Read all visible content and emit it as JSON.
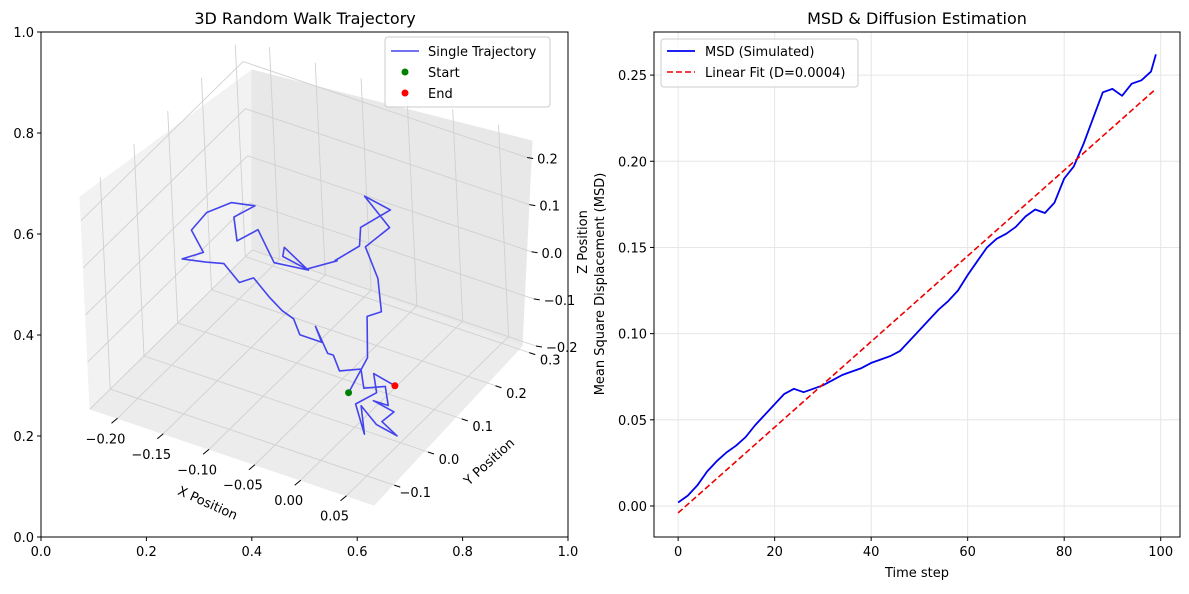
{
  "colors": {
    "trajectory": "#4444ee",
    "start": "#008000",
    "end": "#ff0000",
    "msd": "#0000ee",
    "fit": "#ee0000",
    "pane_left": "#f2f2f2",
    "pane_right": "#e8e8e8",
    "pane_floor": "#ececec",
    "grid": "#d0d0d0"
  },
  "chart_data": [
    {
      "type": "line",
      "projection": "3d",
      "title": "3D Random Walk Trajectory",
      "xlabel": "X Position",
      "ylabel": "Y Position",
      "zlabel": "Z Position",
      "xlim": [
        -0.23,
        0.08
      ],
      "ylim": [
        -0.16,
        0.32
      ],
      "zlim": [
        -0.2,
        0.25
      ],
      "xticks": [
        "−0.20",
        "−0.15",
        "−0.10",
        "−0.05",
        "0.00",
        "0.05"
      ],
      "yticks": [
        "−0.1",
        "0.0",
        "0.1",
        "0.2",
        "0.3"
      ],
      "zticks": [
        "−0.2",
        "−0.1",
        "0.0",
        "0.1",
        "0.2"
      ],
      "frame": {
        "xlim": [
          0,
          1
        ],
        "ylim": [
          0,
          1
        ],
        "xticks": [
          "0.0",
          "0.2",
          "0.4",
          "0.6",
          "0.8",
          "1.0"
        ],
        "yticks": [
          "0.0",
          "0.2",
          "0.4",
          "0.6",
          "0.8",
          "1.0"
        ]
      },
      "legend": {
        "position": "top-right",
        "entries": [
          "Single Trajectory",
          "Start",
          "End"
        ]
      },
      "series": [
        {
          "name": "Single Trajectory",
          "points": [
            [
              -0.005,
              0.0,
              -0.13
            ],
            [
              0.01,
              0.02,
              -0.06
            ],
            [
              0.0,
              0.05,
              0.0
            ],
            [
              0.02,
              0.04,
              0.03
            ],
            [
              0.01,
              0.06,
              0.08
            ],
            [
              -0.01,
              0.08,
              0.12
            ],
            [
              0.01,
              0.1,
              0.16
            ],
            [
              -0.02,
              0.11,
              0.2
            ],
            [
              0.0,
              0.13,
              0.17
            ],
            [
              -0.03,
              0.12,
              0.12
            ],
            [
              -0.04,
              0.14,
              0.06
            ],
            [
              -0.06,
              0.12,
              0.03
            ],
            [
              -0.05,
              0.1,
              0.05
            ],
            [
              -0.08,
              0.09,
              0.02
            ],
            [
              -0.1,
              0.08,
              0.06
            ],
            [
              -0.11,
              0.1,
              0.02
            ],
            [
              -0.09,
              0.12,
              -0.01
            ],
            [
              -0.12,
              0.1,
              0.0
            ],
            [
              -0.14,
              0.11,
              0.05
            ],
            [
              -0.16,
              0.1,
              0.02
            ],
            [
              -0.17,
              0.12,
              0.05
            ],
            [
              -0.15,
              0.13,
              0.08
            ],
            [
              -0.18,
              0.14,
              0.06
            ],
            [
              -0.2,
              0.12,
              0.04
            ],
            [
              -0.21,
              0.1,
              0.01
            ],
            [
              -0.19,
              0.08,
              -0.01
            ],
            [
              -0.21,
              0.07,
              -0.03
            ],
            [
              -0.18,
              0.06,
              -0.01
            ],
            [
              -0.16,
              0.06,
              0.0
            ],
            [
              -0.14,
              0.05,
              -0.02
            ],
            [
              -0.12,
              0.04,
              0.01
            ],
            [
              -0.1,
              0.03,
              -0.01
            ],
            [
              -0.09,
              0.04,
              -0.04
            ],
            [
              -0.07,
              0.02,
              -0.03
            ],
            [
              -0.06,
              0.01,
              -0.05
            ],
            [
              -0.04,
              0.02,
              -0.06
            ],
            [
              -0.05,
              0.03,
              -0.04
            ],
            [
              -0.03,
              0.01,
              -0.07
            ],
            [
              -0.02,
              0.0,
              -0.06
            ],
            [
              -0.01,
              -0.01,
              -0.08
            ],
            [
              0.01,
              0.0,
              -0.07
            ],
            [
              0.02,
              -0.02,
              -0.09
            ],
            [
              0.04,
              -0.01,
              -0.08
            ],
            [
              0.05,
              -0.03,
              -0.1
            ],
            [
              0.03,
              -0.02,
              -0.11
            ],
            [
              0.06,
              -0.04,
              -0.1
            ],
            [
              0.05,
              -0.05,
              -0.12
            ],
            [
              0.07,
              -0.06,
              -0.13
            ],
            [
              0.04,
              -0.04,
              -0.14
            ],
            [
              0.02,
              -0.03,
              -0.12
            ],
            [
              0.03,
              -0.05,
              -0.16
            ],
            [
              0.01,
              -0.02,
              -0.13
            ],
            [
              0.03,
              -0.01,
              -0.1
            ],
            [
              0.02,
              0.01,
              -0.08
            ],
            [
              0.035,
              0.03,
              -0.11
            ]
          ]
        },
        {
          "name": "Start",
          "point": [
            -0.005,
            0.0,
            -0.13
          ]
        },
        {
          "name": "End",
          "point": [
            0.035,
            0.03,
            -0.11
          ]
        }
      ]
    },
    {
      "type": "line",
      "title": "MSD & Diffusion Estimation",
      "xlabel": "Time step",
      "ylabel": "Mean Square Displacement (MSD)",
      "xlim": [
        -5,
        104
      ],
      "ylim": [
        -0.018,
        0.275
      ],
      "xticks": [
        0,
        20,
        40,
        60,
        80,
        100
      ],
      "yticks": [
        0.0,
        0.05,
        0.1,
        0.15,
        0.2,
        0.25
      ],
      "ytick_labels": [
        "0.00",
        "0.05",
        "0.10",
        "0.15",
        "0.20",
        "0.25"
      ],
      "grid": true,
      "legend": {
        "position": "top-left",
        "entries": [
          "MSD (Simulated)",
          "Linear Fit (D=0.0004)"
        ]
      },
      "series": [
        {
          "name": "MSD (Simulated)",
          "x": [
            0,
            2,
            4,
            6,
            8,
            10,
            12,
            14,
            16,
            18,
            20,
            22,
            24,
            26,
            28,
            30,
            32,
            34,
            36,
            38,
            40,
            42,
            44,
            46,
            48,
            50,
            52,
            54,
            56,
            58,
            60,
            62,
            64,
            66,
            68,
            70,
            72,
            74,
            76,
            78,
            80,
            82,
            84,
            86,
            88,
            90,
            92,
            94,
            96,
            98,
            99
          ],
          "y": [
            0.002,
            0.006,
            0.012,
            0.02,
            0.026,
            0.031,
            0.035,
            0.04,
            0.047,
            0.053,
            0.059,
            0.065,
            0.068,
            0.066,
            0.068,
            0.07,
            0.073,
            0.076,
            0.078,
            0.08,
            0.083,
            0.085,
            0.087,
            0.09,
            0.096,
            0.102,
            0.108,
            0.114,
            0.119,
            0.125,
            0.134,
            0.142,
            0.15,
            0.155,
            0.158,
            0.162,
            0.168,
            0.172,
            0.17,
            0.176,
            0.19,
            0.197,
            0.21,
            0.225,
            0.24,
            0.242,
            0.238,
            0.245,
            0.247,
            0.252,
            0.262
          ]
        },
        {
          "name": "Linear Fit (D=0.0004)",
          "style": "dashed",
          "x": [
            0,
            99
          ],
          "y": [
            -0.004,
            0.242
          ]
        }
      ]
    }
  ]
}
